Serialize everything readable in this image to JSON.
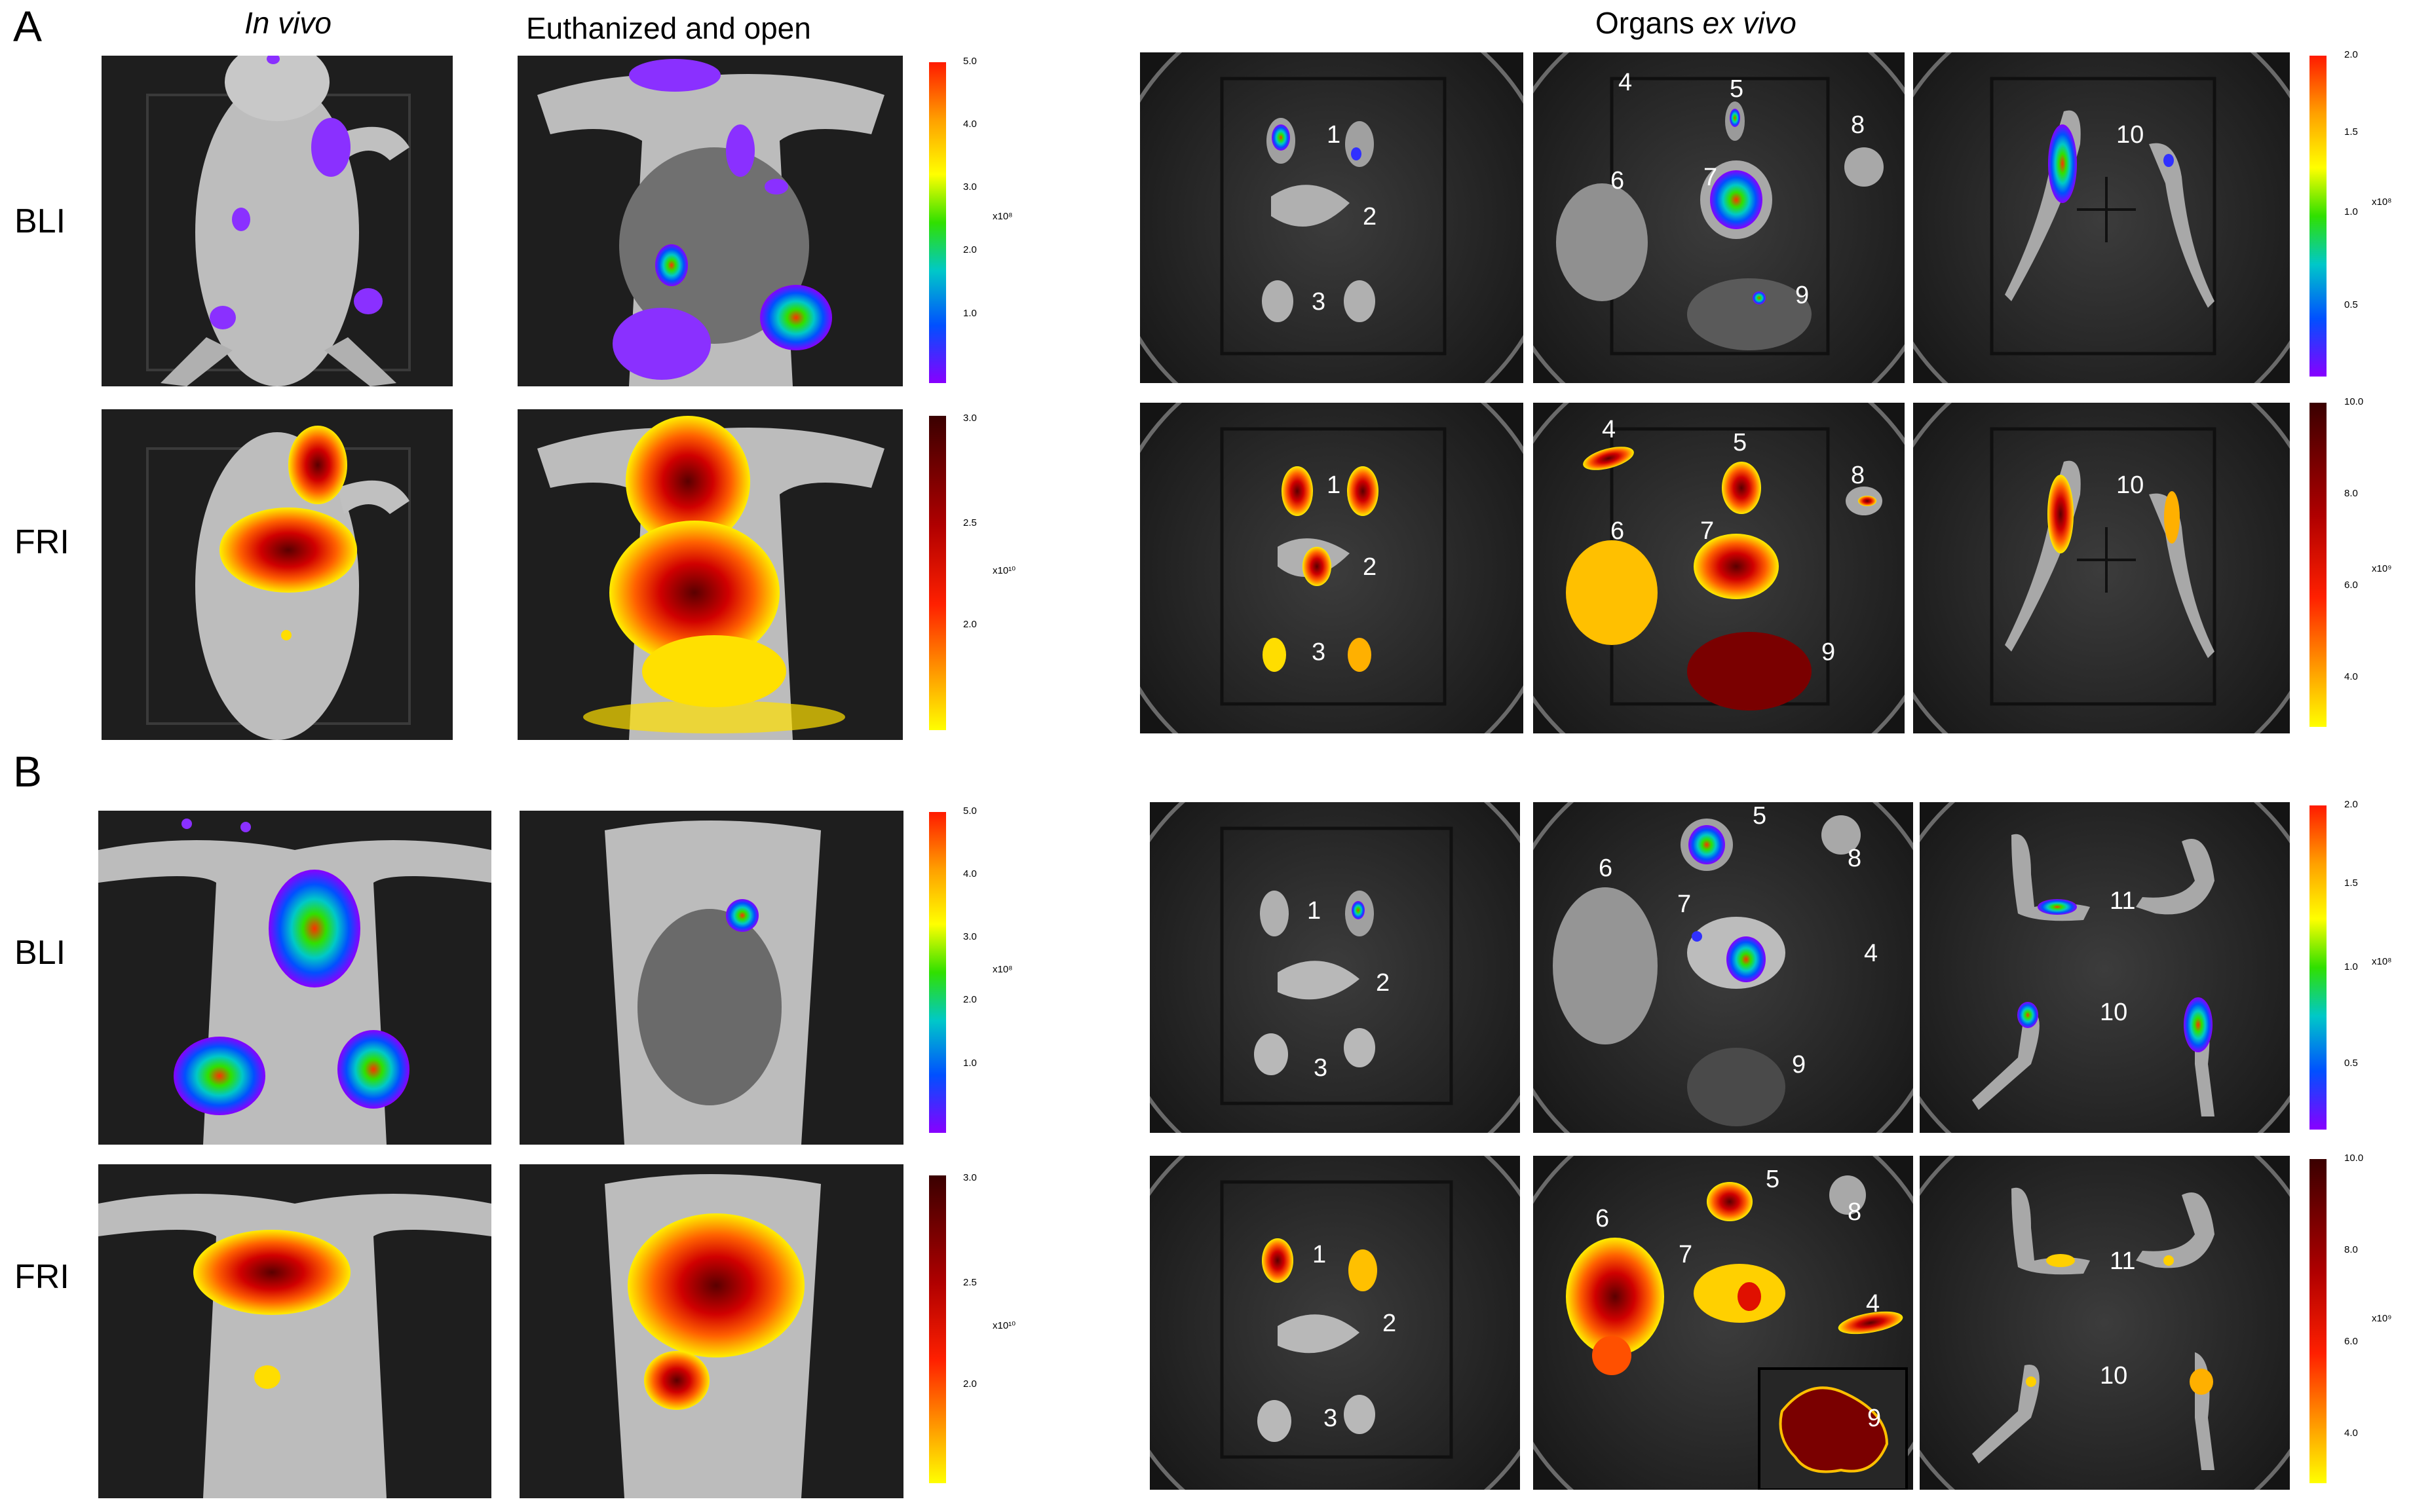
{
  "panels": [
    "A",
    "B"
  ],
  "headers": {
    "in_vivo": "In vivo",
    "euthanized": "Euthanized and open",
    "organs_prefix": "Organs ",
    "organs_suffix": "ex vivo"
  },
  "rows": [
    "BLI",
    "FRI",
    "BLI",
    "FRI"
  ],
  "colorbars": {
    "bli": {
      "ticks": [
        "5.0",
        "4.0",
        "3.0",
        "2.0",
        "1.0"
      ],
      "exp": "x10⁸",
      "colors": [
        "#ff1a00",
        "#ffa000",
        "#ffff00",
        "#30e000",
        "#00c8c8",
        "#0050ff",
        "#8800ff"
      ]
    },
    "fri": {
      "ticks": [
        "3.0",
        "2.5",
        "2.0"
      ],
      "exp": "x10¹⁰",
      "colors": [
        "#3a0000",
        "#b00000",
        "#ff2000",
        "#ff9000",
        "#ffff00"
      ]
    },
    "bli_ex": {
      "ticks": [
        "2.0",
        "1.5",
        "1.0",
        "0.5"
      ],
      "exp": "x10⁸"
    },
    "fri_ex": {
      "ticks": [
        "10.0",
        "8.0",
        "6.0",
        "4.0"
      ],
      "exp": "x10⁹"
    }
  },
  "organ_labels": {
    "a_bli_1": [
      "1",
      "2",
      "3"
    ],
    "a_bli_2": [
      "4",
      "5",
      "6",
      "7",
      "8",
      "9"
    ],
    "a_bli_3": [
      "10"
    ],
    "a_fri_1": [
      "1",
      "2",
      "3"
    ],
    "a_fri_2": [
      "4",
      "5",
      "6",
      "7",
      "8",
      "9"
    ],
    "a_fri_3": [
      "10"
    ],
    "b_bli_1": [
      "1",
      "2",
      "3"
    ],
    "b_bli_2": [
      "5",
      "6",
      "7",
      "8",
      "4",
      "9"
    ],
    "b_bli_3": [
      "11",
      "10"
    ],
    "b_fri_1": [
      "1",
      "2",
      "3"
    ],
    "b_fri_2": [
      "5",
      "6",
      "7",
      "8",
      "4",
      "9"
    ],
    "b_fri_3": [
      "11",
      "10"
    ]
  }
}
